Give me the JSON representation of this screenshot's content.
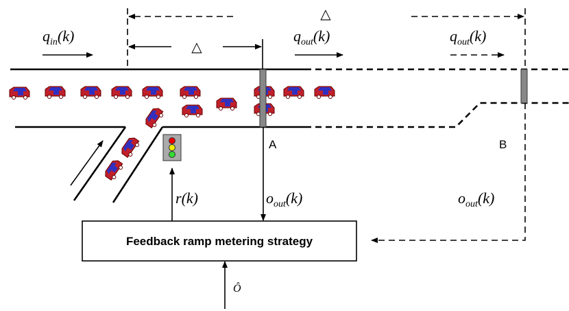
{
  "labels": {
    "q_in": {
      "main": "q",
      "sub": "in",
      "arg": "(k)"
    },
    "q_out_a": {
      "main": "q",
      "sub": "out",
      "arg": "(k)"
    },
    "q_out_b": {
      "main": "q",
      "sub": "out",
      "arg": "(k)"
    },
    "delta_long": "△",
    "delta_short": "△",
    "point_a": "A",
    "point_b": "B",
    "r": {
      "main": "r",
      "arg": "(k)"
    },
    "o_out_a": {
      "main": "o",
      "sub": "out",
      "arg": "(k)"
    },
    "o_out_b": {
      "main": "o",
      "sub": "out",
      "arg": "(k)"
    },
    "controller": "Feedback ramp metering strategy",
    "setpoint": "Ô"
  }
}
